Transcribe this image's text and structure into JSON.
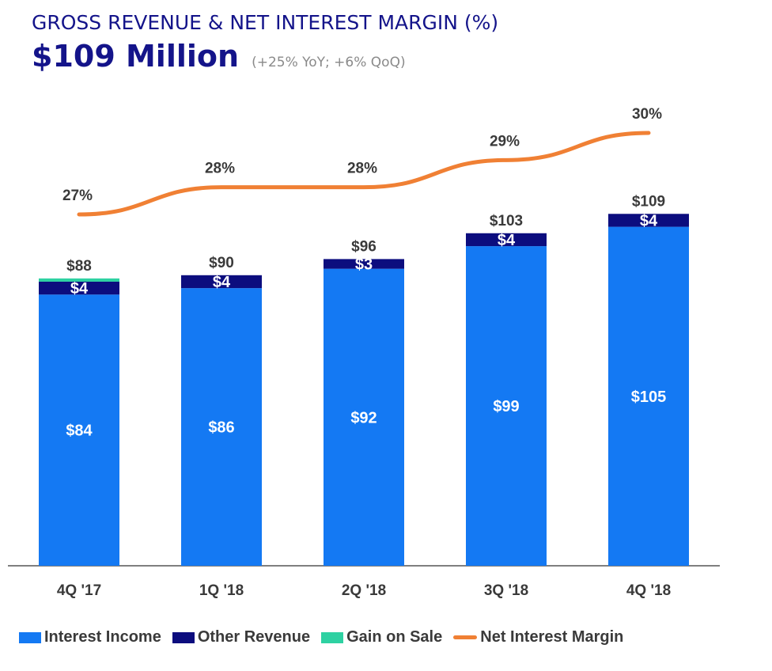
{
  "header": {
    "title": "GROSS REVENUE & NET INTEREST MARGIN (%)",
    "headline": "$109 Million",
    "subtitle": "(+25% YoY; +6% QoQ)"
  },
  "colors": {
    "interest_income": "#1479f3",
    "other_revenue": "#0c0d7e",
    "gain_on_sale": "#2ed1a2",
    "net_interest_margin": "#f08034",
    "title": "#14148a"
  },
  "legend": [
    {
      "label": "Interest Income",
      "color_key": "interest_income",
      "kind": "bar"
    },
    {
      "label": "Other Revenue",
      "color_key": "other_revenue",
      "kind": "bar"
    },
    {
      "label": "Gain on Sale",
      "color_key": "gain_on_sale",
      "kind": "bar"
    },
    {
      "label": "Net Interest Margin",
      "color_key": "net_interest_margin",
      "kind": "line"
    }
  ],
  "chart_data": {
    "type": "bar",
    "stacked": true,
    "categories": [
      "4Q '17",
      "1Q '18",
      "2Q '18",
      "3Q '18",
      "4Q '18"
    ],
    "series": [
      {
        "name": "Interest Income",
        "values": [
          84,
          86,
          92,
          99,
          105
        ],
        "labels": [
          "$84",
          "$86",
          "$92",
          "$99",
          "$105"
        ]
      },
      {
        "name": "Other Revenue",
        "values": [
          4,
          4,
          3,
          4,
          4
        ],
        "labels": [
          "$4",
          "$4",
          "$3",
          "$4",
          "$4"
        ]
      },
      {
        "name": "Gain on Sale",
        "values": [
          1,
          0,
          0,
          0,
          0
        ],
        "labels": [
          "",
          "",
          "",
          "",
          ""
        ]
      }
    ],
    "totals": [
      88,
      90,
      96,
      103,
      109
    ],
    "total_labels": [
      "$88",
      "$90",
      "$96",
      "$103",
      "$109"
    ],
    "line_series": {
      "name": "Net Interest Margin",
      "values": [
        27,
        28,
        28,
        29,
        30
      ],
      "labels": [
        "27%",
        "28%",
        "28%",
        "29%",
        "30%"
      ]
    },
    "title": "GROSS REVENUE & NET INTEREST MARGIN (%)",
    "legend_position": "bottom",
    "grid": false,
    "ylim": [
      0,
      115
    ],
    "line_ylim": [
      20,
      31.5
    ]
  }
}
